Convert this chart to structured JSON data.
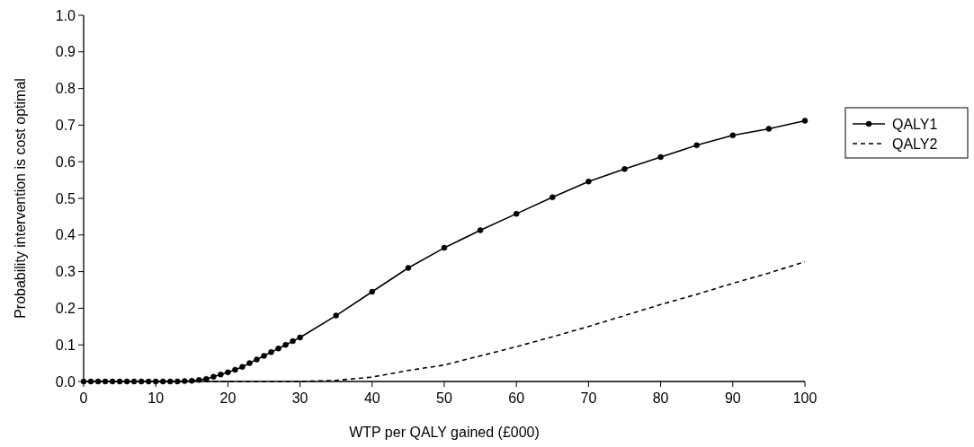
{
  "chart_data": {
    "type": "line",
    "xlabel": "WTP per QALY gained (£000)",
    "ylabel": "Probability intervention is cost optimal",
    "xlim": [
      0,
      100
    ],
    "xticks": [
      0,
      10,
      20,
      30,
      40,
      50,
      60,
      70,
      80,
      90,
      100
    ],
    "ylim": [
      0,
      1
    ],
    "yticks": [
      {
        "value": 0,
        "label": "0.0"
      },
      {
        "value": 0.1,
        "label": "0.1"
      },
      {
        "value": 0.2,
        "label": "0.2"
      },
      {
        "value": 0.3,
        "label": "0.3"
      },
      {
        "value": 0.4,
        "label": "0.4"
      },
      {
        "value": 0.5,
        "label": "0.5"
      },
      {
        "value": 0.6,
        "label": "0.6"
      },
      {
        "value": 0.7,
        "label": "0.7"
      },
      {
        "value": 0.8,
        "label": "0.8"
      },
      {
        "value": 0.9,
        "label": "0.9"
      },
      {
        "value": 1,
        "label": "1.0"
      }
    ],
    "legend": "right",
    "grid": false,
    "series": [
      {
        "name": "QALY1",
        "color": "#000000",
        "marker": "circle",
        "line_style": "solid",
        "x": [
          0,
          1,
          2,
          3,
          4,
          5,
          6,
          7,
          8,
          9,
          10,
          11,
          12,
          13,
          14,
          15,
          16,
          17,
          18,
          19,
          20,
          21,
          22,
          23,
          24,
          25,
          26,
          27,
          28,
          29,
          30,
          35,
          40,
          45,
          50,
          55,
          60,
          65,
          70,
          75,
          80,
          85,
          90,
          95,
          100
        ],
        "values": [
          0,
          0,
          0,
          0,
          0,
          0,
          0,
          0,
          0,
          0,
          0,
          0,
          0,
          0,
          0.001,
          0.002,
          0.004,
          0.007,
          0.013,
          0.019,
          0.025,
          0.032,
          0.04,
          0.05,
          0.06,
          0.07,
          0.08,
          0.09,
          0.1,
          0.11,
          0.12,
          0.18,
          0.245,
          0.31,
          0.365,
          0.413,
          0.458,
          0.503,
          0.546,
          0.58,
          0.613,
          0.645,
          0.672,
          0.69,
          0.712
        ]
      },
      {
        "name": "QALY2",
        "color": "#000000",
        "marker": "none",
        "line_style": "dashed",
        "x": [
          0,
          10,
          20,
          30,
          35,
          40,
          45,
          50,
          55,
          60,
          65,
          70,
          75,
          80,
          85,
          90,
          95,
          100
        ],
        "values": [
          0,
          0,
          0,
          0,
          0.003,
          0.012,
          0.03,
          0.045,
          0.07,
          0.095,
          0.122,
          0.15,
          0.18,
          0.21,
          0.238,
          0.268,
          0.296,
          0.327
        ]
      }
    ]
  }
}
